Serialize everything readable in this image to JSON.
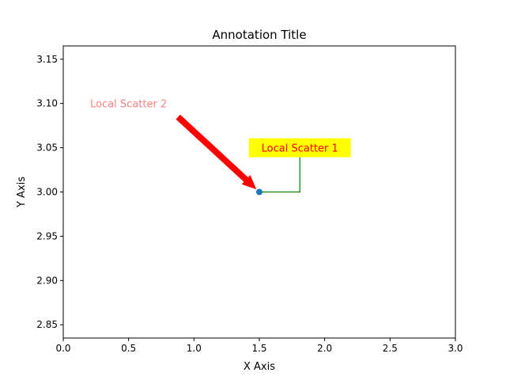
{
  "chart_data": {
    "type": "scatter",
    "title": "Annotation Title",
    "xlabel": "X Axis",
    "ylabel": "Y Axis",
    "xlim": [
      0.0,
      3.0
    ],
    "ylim": [
      2.835,
      3.165
    ],
    "x_ticks": [
      0.0,
      0.5,
      1.0,
      1.5,
      2.0,
      2.5,
      3.0
    ],
    "x_tick_labels": [
      "0.0",
      "0.5",
      "1.0",
      "1.5",
      "2.0",
      "2.5",
      "3.0"
    ],
    "y_ticks": [
      2.85,
      2.9,
      2.95,
      3.0,
      3.05,
      3.1,
      3.15
    ],
    "y_tick_labels": [
      "2.85",
      "2.90",
      "2.95",
      "3.00",
      "3.05",
      "3.10",
      "3.15"
    ],
    "grid": false,
    "series": [
      {
        "x": [
          1.5
        ],
        "y": [
          3.0
        ],
        "color": "#1f77b4"
      }
    ],
    "annotations": [
      {
        "text": "Local Scatter 1",
        "text_x": 1.81,
        "text_y": 3.05,
        "xy": [
          1.5,
          3.0
        ],
        "text_color": "#ff0000",
        "box_color": "#ffff00",
        "arrow_color": "#008000",
        "arrow_style": "angle"
      },
      {
        "text": "Local Scatter 2",
        "text_x": 0.5,
        "text_y": 3.1,
        "xy": [
          1.5,
          3.0
        ],
        "text_color": "#ff0000",
        "text_alpha": 0.5,
        "arrow_color": "#ff0000",
        "arrow_style": "fancy"
      }
    ]
  }
}
